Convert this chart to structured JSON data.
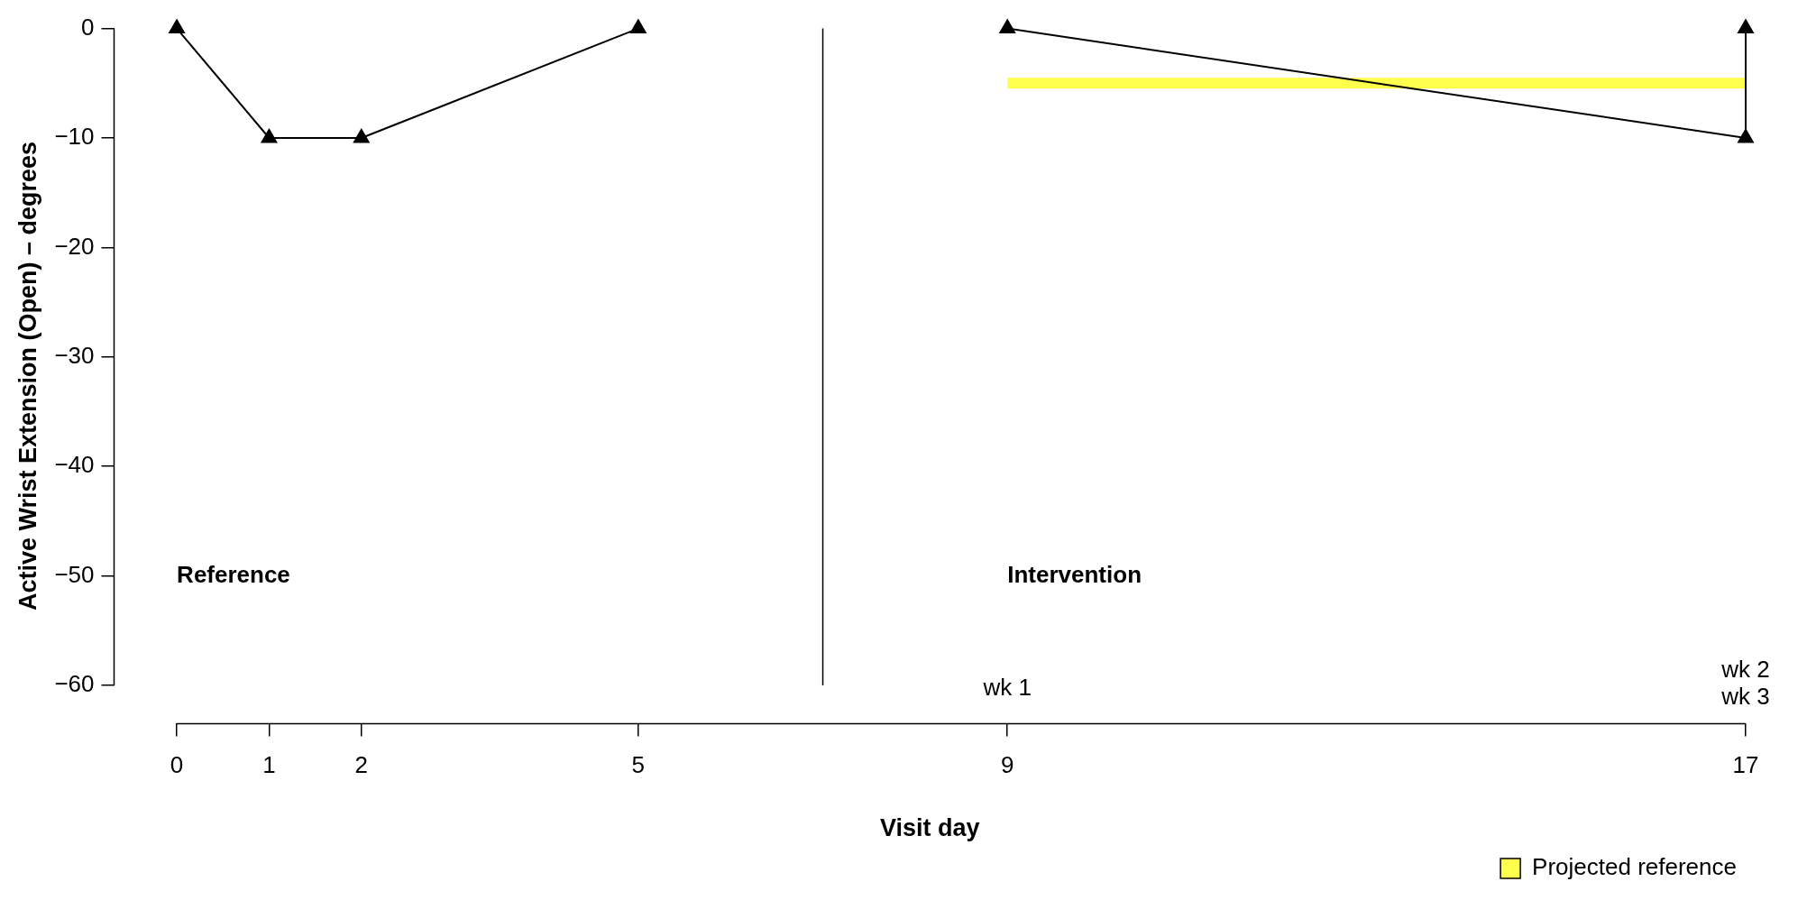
{
  "chart_data": {
    "type": "line",
    "xlabel": "Visit day",
    "ylabel": "Active Wrist Extension (Open) – degrees",
    "xlim": [
      -0.68,
      17
    ],
    "xticks": [
      0,
      1,
      2,
      5,
      9,
      17
    ],
    "ylim": [
      -63.5,
      0
    ],
    "yticks": [
      -60,
      -50,
      -40,
      -30,
      -20,
      -10,
      0
    ],
    "grid": false,
    "legend": "bottom right",
    "series": [
      {
        "color": "#000000",
        "marker": "triangle",
        "x": [
          0,
          1,
          2,
          5
        ],
        "values": [
          0,
          -10,
          -10,
          0
        ]
      },
      {
        "color": "#000000",
        "marker": "triangle",
        "x": [
          9,
          17,
          17
        ],
        "values": [
          0,
          -10,
          0
        ]
      },
      {
        "name": "Projected reference",
        "color": "#ffff4d",
        "marker": "none",
        "x": [
          9,
          17
        ],
        "values": [
          -5,
          -5
        ]
      }
    ],
    "ref_lines": [
      {
        "axis": "x",
        "value": 7,
        "color": "#000000"
      }
    ],
    "annotations": [
      "Reference",
      "Intervention",
      "wk 1",
      "wk 2",
      "wk 3"
    ]
  }
}
